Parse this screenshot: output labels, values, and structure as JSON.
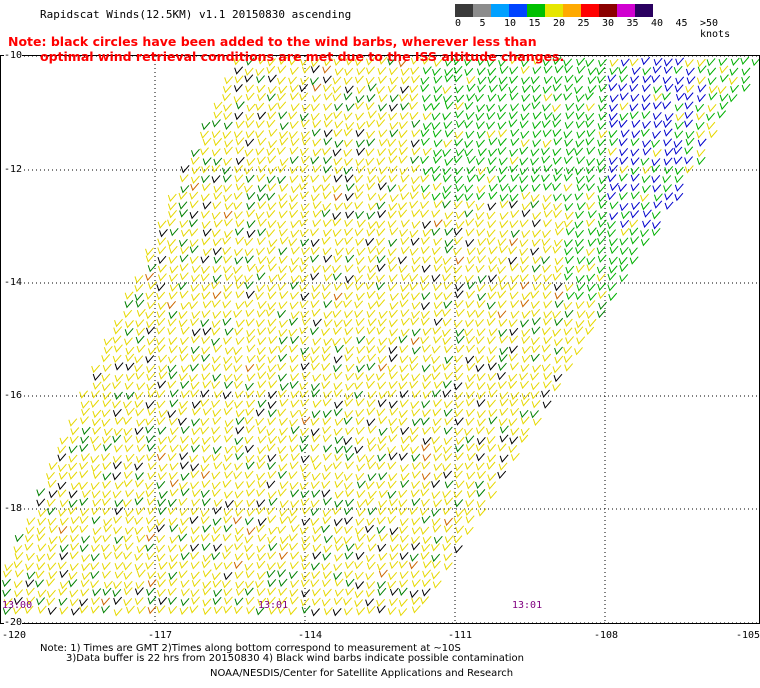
{
  "title": "Rapidscat Winds(12.5KM) v1.1 20150830 ascending",
  "note": {
    "line1": "Note: black circles have been added to the wind barbs, wherever less than",
    "line2": "optimal wind retrieval conditions are met due to the ISS altitude changes."
  },
  "legend": {
    "labels": [
      "0",
      "5",
      "10",
      "15",
      "20",
      "25",
      "30",
      "35",
      "40",
      "45",
      ">50 knots"
    ],
    "colors": [
      "#3a3a3a",
      "#8c8c8c",
      "#00a0ff",
      "#0044ff",
      "#00c000",
      "#e6e600",
      "#ffaa00",
      "#ff0000",
      "#8b0000",
      "#d000d0",
      "#2a0060"
    ]
  },
  "axes": {
    "lat_labels": [
      "-10",
      "-12",
      "-14",
      "-16",
      "-18",
      "-20"
    ],
    "lon_labels": [
      "-120",
      "-117",
      "-114",
      "-111",
      "-108",
      "-105"
    ]
  },
  "times": [
    "13:00",
    "13:01",
    "13:01"
  ],
  "footer": {
    "line1": "Note: 1) Times are GMT 2)Times along bottom correspond to measurement at ~10S",
    "line2": "3)Data buffer is 22 hrs from 20150830 4) Black wind barbs indicate possible contamination",
    "line3": "NOAA/NESDIS/Center for Satellite Applications and Research"
  }
}
